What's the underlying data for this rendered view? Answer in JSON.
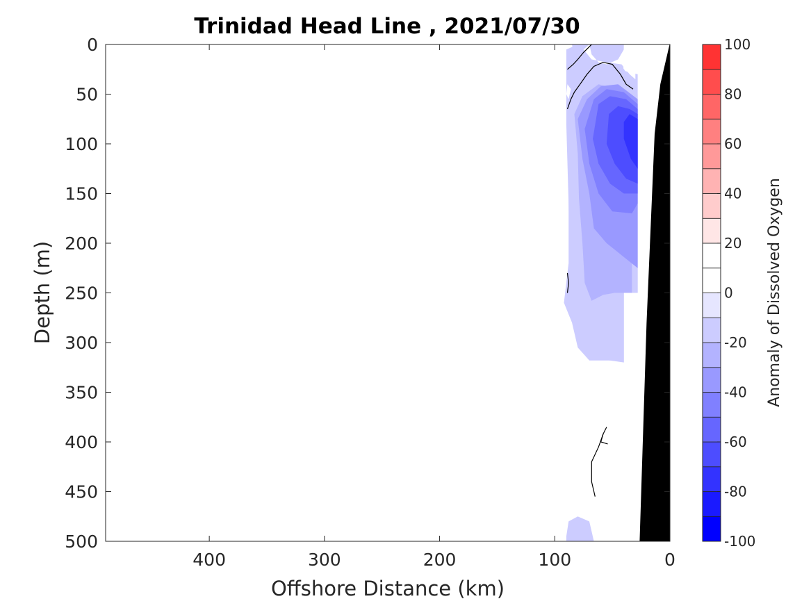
{
  "chart_data": {
    "type": "contour",
    "title": "Trinidad Head Line , 2021/07/30",
    "xlabel": "Offshore Distance (km)",
    "ylabel": "Depth (m)",
    "xlim": [
      490,
      0
    ],
    "ylim": [
      0,
      500
    ],
    "x_reversed": true,
    "y_reversed": true,
    "x_ticks": [
      400,
      300,
      200,
      100,
      0
    ],
    "y_ticks": [
      0,
      50,
      100,
      150,
      200,
      250,
      300,
      350,
      400,
      450,
      500
    ],
    "colorbar": {
      "label": "Anomaly of Dissolved Oxygen",
      "range": [
        -100,
        100
      ],
      "tick_values": [
        100,
        80,
        60,
        40,
        20,
        0,
        -20,
        -40,
        -60,
        -80,
        -100
      ],
      "levels": [
        -100,
        -90,
        -80,
        -70,
        -60,
        -50,
        -40,
        -30,
        -20,
        -10,
        0,
        10,
        20,
        30,
        40,
        50,
        60,
        70,
        80,
        90,
        100
      ],
      "colors": [
        "#0000ff",
        "#1a1aff",
        "#3333ff",
        "#4d4dff",
        "#6666ff",
        "#8080ff",
        "#9999ff",
        "#b3b3ff",
        "#ccccff",
        "#e6e6ff",
        "#ffffff",
        "#ffffff",
        "#ffe6e6",
        "#ffcccc",
        "#ffb3b3",
        "#ff9999",
        "#ff8080",
        "#ff6666",
        "#ff4d4d",
        "#ff3333",
        "#ff0000"
      ]
    },
    "bathymetry_color": "#000000",
    "bathymetry": [
      [
        0,
        0
      ],
      [
        8,
        40
      ],
      [
        13,
        90
      ],
      [
        20,
        280
      ],
      [
        26,
        500
      ]
    ],
    "filled_regions": [
      {
        "value": -15,
        "polygon": [
          [
            90,
            0
          ],
          [
            82,
            0
          ],
          [
            78,
            8
          ],
          [
            72,
            20
          ],
          [
            70,
            30
          ],
          [
            74,
            50
          ],
          [
            78,
            70
          ],
          [
            82,
            100
          ],
          [
            84,
            150
          ],
          [
            84,
            200
          ],
          [
            78,
            230
          ],
          [
            75,
            280
          ],
          [
            66,
            310
          ],
          [
            40,
            320
          ],
          [
            40,
            250
          ],
          [
            28,
            250
          ],
          [
            28,
            50
          ],
          [
            32,
            38
          ],
          [
            55,
            0
          ],
          [
            80,
            0
          ],
          [
            90,
            5
          ],
          [
            90,
            80
          ],
          [
            88,
            160
          ],
          [
            88,
            220
          ],
          [
            92,
            260
          ],
          [
            85,
            280
          ],
          [
            80,
            305
          ],
          [
            70,
            318
          ],
          [
            45,
            318
          ],
          [
            40,
            0
          ]
        ]
      },
      {
        "value": -15,
        "polygon": [
          [
            91,
            0
          ],
          [
            85,
            0
          ],
          [
            83,
            15
          ],
          [
            78,
            30
          ],
          [
            74,
            45
          ],
          [
            78,
            60
          ],
          [
            85,
            80
          ],
          [
            88,
            100
          ],
          [
            88,
            160
          ],
          [
            87,
            205
          ],
          [
            83,
            240
          ],
          [
            80,
            255
          ],
          [
            76,
            300
          ],
          [
            70,
            315
          ],
          [
            40,
            320
          ],
          [
            40,
            250
          ],
          [
            28,
            250
          ],
          [
            28,
            30
          ],
          [
            45,
            25
          ],
          [
            60,
            10
          ],
          [
            75,
            0
          ]
        ]
      },
      {
        "value": -15,
        "polygon": [
          [
            90,
            495
          ],
          [
            88,
            480
          ],
          [
            80,
            475
          ],
          [
            70,
            480
          ],
          [
            66,
            500
          ],
          [
            90,
            500
          ]
        ]
      },
      {
        "value": -25,
        "polygon": [
          [
            83,
            70
          ],
          [
            80,
            110
          ],
          [
            79,
            155
          ],
          [
            76,
            200
          ],
          [
            74,
            240
          ],
          [
            68,
            258
          ],
          [
            58,
            252
          ],
          [
            48,
            250
          ],
          [
            33,
            250
          ],
          [
            33,
            60
          ],
          [
            45,
            45
          ],
          [
            62,
            40
          ],
          [
            76,
            52
          ]
        ]
      },
      {
        "value": -35,
        "polygon": [
          [
            80,
            75
          ],
          [
            76,
            115
          ],
          [
            70,
            150
          ],
          [
            66,
            185
          ],
          [
            55,
            200
          ],
          [
            42,
            212
          ],
          [
            28,
            225
          ],
          [
            28,
            55
          ],
          [
            45,
            40
          ],
          [
            60,
            42
          ],
          [
            72,
            55
          ]
        ]
      },
      {
        "value": -45,
        "polygon": [
          [
            74,
            85
          ],
          [
            70,
            120
          ],
          [
            62,
            150
          ],
          [
            50,
            168
          ],
          [
            33,
            170
          ],
          [
            28,
            160
          ],
          [
            28,
            60
          ],
          [
            40,
            48
          ],
          [
            55,
            45
          ],
          [
            66,
            55
          ]
        ]
      },
      {
        "value": -55,
        "polygon": [
          [
            67,
            95
          ],
          [
            62,
            120
          ],
          [
            52,
            140
          ],
          [
            40,
            150
          ],
          [
            28,
            150
          ],
          [
            28,
            65
          ],
          [
            38,
            55
          ],
          [
            52,
            52
          ],
          [
            62,
            60
          ]
        ]
      },
      {
        "value": -65,
        "polygon": [
          [
            55,
            100
          ],
          [
            48,
            120
          ],
          [
            38,
            135
          ],
          [
            28,
            140
          ],
          [
            28,
            70
          ],
          [
            35,
            65
          ],
          [
            45,
            62
          ],
          [
            53,
            70
          ]
        ]
      },
      {
        "value": -75,
        "polygon": [
          [
            40,
            95
          ],
          [
            34,
            115
          ],
          [
            28,
            125
          ],
          [
            28,
            75
          ],
          [
            35,
            70
          ],
          [
            40,
            78
          ]
        ]
      },
      {
        "value": 15,
        "polygon": [
          [
            70,
            0
          ],
          [
            68,
            10
          ],
          [
            62,
            18
          ],
          [
            55,
            20
          ],
          [
            45,
            15
          ],
          [
            40,
            5
          ],
          [
            30,
            0
          ],
          [
            30,
            35
          ],
          [
            35,
            30
          ],
          [
            42,
            20
          ],
          [
            55,
            18
          ],
          [
            68,
            15
          ],
          [
            75,
            5
          ]
        ]
      },
      {
        "value": 15,
        "polygon": [
          [
            89,
            40
          ],
          [
            86,
            45
          ],
          [
            88,
            55
          ],
          [
            90,
            50
          ]
        ]
      }
    ],
    "contour_lines": [
      {
        "level": 0,
        "points": [
          [
            89,
            25
          ],
          [
            84,
            20
          ],
          [
            80,
            15
          ],
          [
            75,
            8
          ],
          [
            68,
            0
          ]
        ]
      },
      {
        "level": 0,
        "points": [
          [
            89,
            65
          ],
          [
            86,
            55
          ],
          [
            83,
            48
          ],
          [
            78,
            40
          ],
          [
            72,
            30
          ],
          [
            66,
            22
          ],
          [
            58,
            18
          ],
          [
            50,
            20
          ],
          [
            43,
            30
          ],
          [
            38,
            40
          ],
          [
            32,
            45
          ]
        ]
      },
      {
        "level": 0,
        "points": [
          [
            89,
            230
          ],
          [
            88,
            240
          ],
          [
            89,
            250
          ]
        ]
      },
      {
        "level": 0,
        "points": [
          [
            55,
            385
          ],
          [
            58,
            392
          ],
          [
            62,
            405
          ],
          [
            68,
            420
          ],
          [
            68,
            440
          ],
          [
            65,
            455
          ]
        ]
      },
      {
        "level": 0,
        "points": [
          [
            58,
            392
          ],
          [
            60,
            400
          ],
          [
            54,
            402
          ]
        ]
      }
    ]
  }
}
